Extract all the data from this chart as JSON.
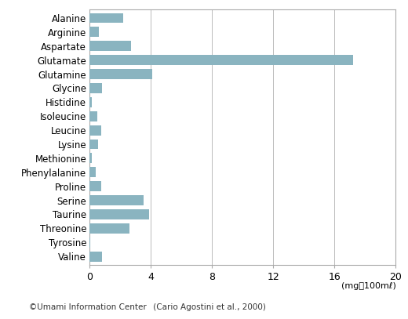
{
  "categories": [
    "Alanine",
    "Arginine",
    "Aspartate",
    "Glutamate",
    "Glutamine",
    "Glycine",
    "Histidine",
    "Isoleucine",
    "Leucine",
    "Lysine",
    "Methionine",
    "Phenylalanine",
    "Proline",
    "Serine",
    "Taurine",
    "Threonine",
    "Tyrosine",
    "Valine"
  ],
  "values": [
    2.2,
    0.6,
    2.7,
    17.2,
    4.1,
    0.8,
    0.15,
    0.5,
    0.75,
    0.55,
    0.15,
    0.4,
    0.75,
    3.5,
    3.9,
    2.6,
    0.05,
    0.8
  ],
  "bar_color": "#8ab4c0",
  "xlim": [
    0,
    20
  ],
  "xticks": [
    0,
    4,
    8,
    12,
    16,
    20
  ],
  "xlabel": "(mg／100mℓ)",
  "footer_left": "©Umami Information Center",
  "footer_right": " (Cario Agostini et al., 2000)",
  "background_color": "#ffffff",
  "grid_color": "#bbbbbb",
  "bar_height": 0.72,
  "label_fontsize": 8.5,
  "tick_fontsize": 9.0
}
